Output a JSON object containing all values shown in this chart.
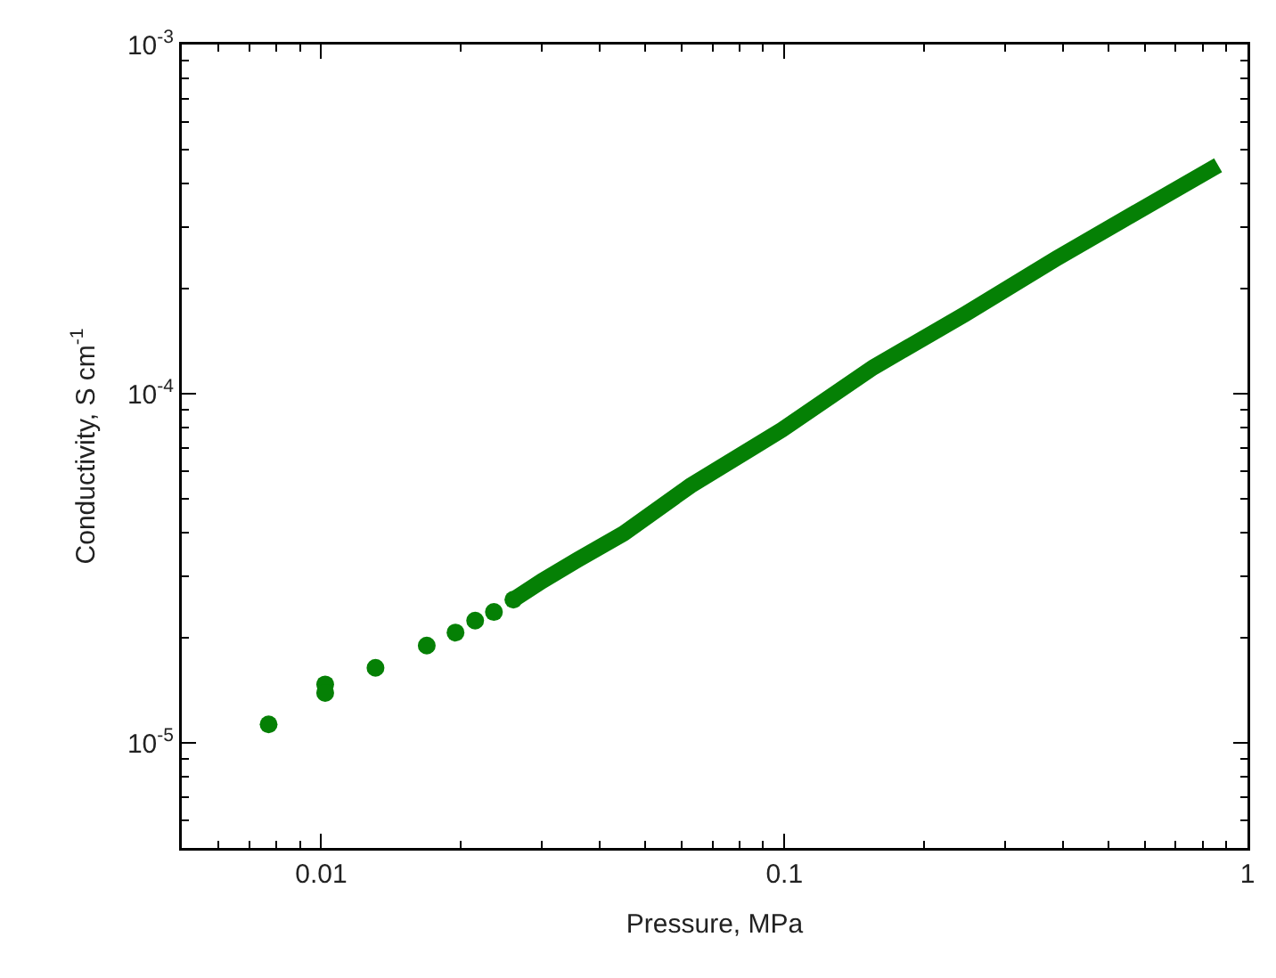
{
  "chart_data": {
    "type": "scatter",
    "xlabel": "Pressure, MPa",
    "ylabel": "Conductivity, S cm$^{-1}$",
    "log": "xy",
    "grid": false,
    "xlim": [
      0.005,
      1
    ],
    "ylim": [
      5e-06,
      0.001
    ],
    "xticks": [
      {
        "value": 0.006,
        "label": null
      },
      {
        "value": 0.007,
        "label": null
      },
      {
        "value": 0.008,
        "label": null
      },
      {
        "value": 0.009,
        "label": null
      },
      0.01,
      {
        "value": 0.02,
        "label": null
      },
      {
        "value": 0.03,
        "label": null
      },
      {
        "value": 0.04,
        "label": null
      },
      {
        "value": 0.05,
        "label": null
      },
      {
        "value": 0.06,
        "label": null
      },
      {
        "value": 0.07,
        "label": null
      },
      {
        "value": 0.08,
        "label": null
      },
      {
        "value": 0.09,
        "label": null
      },
      0.1,
      {
        "value": 0.2,
        "label": null
      },
      {
        "value": 0.3,
        "label": null
      },
      {
        "value": 0.4,
        "label": null
      },
      {
        "value": 0.5,
        "label": null
      },
      {
        "value": 0.6,
        "label": null
      },
      {
        "value": 0.7,
        "label": null
      },
      {
        "value": 0.8,
        "label": null
      },
      {
        "value": 0.9,
        "label": null
      },
      1
    ],
    "yticks": [
      {
        "value": 6e-06,
        "label": null
      },
      {
        "value": 7e-06,
        "label": null
      },
      {
        "value": 8e-06,
        "label": null
      },
      {
        "value": 9e-06,
        "label": null
      },
      {
        "value": 1e-05,
        "label": "10$^{-5}$"
      },
      {
        "value": 2e-05,
        "label": null
      },
      {
        "value": 3e-05,
        "label": null
      },
      {
        "value": 4e-05,
        "label": null
      },
      {
        "value": 5e-05,
        "label": null
      },
      {
        "value": 6e-05,
        "label": null
      },
      {
        "value": 7e-05,
        "label": null
      },
      {
        "value": 8e-05,
        "label": null
      },
      {
        "value": 9e-05,
        "label": null
      },
      {
        "value": 0.0001,
        "label": "10$^{-4}$"
      },
      {
        "value": 0.0002,
        "label": null
      },
      {
        "value": 0.0003,
        "label": null
      },
      {
        "value": 0.0004,
        "label": null
      },
      {
        "value": 0.0005,
        "label": null
      },
      {
        "value": 0.0006,
        "label": null
      },
      {
        "value": 0.0007,
        "label": null
      },
      {
        "value": 0.0008,
        "label": null
      },
      {
        "value": 0.0009,
        "label": null
      },
      {
        "value": 0.001,
        "label": "10$^{-3}$"
      }
    ],
    "series": [
      {
        "marker": "circle",
        "color": "#058005",
        "x": [
          0.0077,
          0.0102,
          0.0102,
          0.0131,
          0.0169,
          0.0195,
          0.0215,
          0.0236,
          0.026
        ],
        "values": [
          1.13e-05,
          1.47e-05,
          1.39e-05,
          1.64e-05,
          1.9e-05,
          2.07e-05,
          2.24e-05,
          2.37e-05,
          2.57e-05
        ]
      },
      {
        "type": "line",
        "marker": "none",
        "color": "#058005",
        "x": [
          0.026,
          0.03,
          0.0357,
          0.045,
          0.0627,
          0.0988,
          0.1557,
          0.2455,
          0.387,
          0.61,
          0.864
        ],
        "values": [
          2.57e-05,
          2.91e-05,
          3.34e-05,
          3.98e-05,
          5.45e-05,
          7.88e-05,
          0.000119,
          0.000169,
          0.000244,
          0.000346,
          0.000451
        ]
      }
    ]
  }
}
